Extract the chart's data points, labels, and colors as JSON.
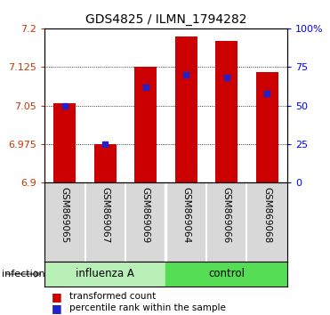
{
  "title": "GDS4825 / ILMN_1794282",
  "samples": [
    "GSM869065",
    "GSM869067",
    "GSM869069",
    "GSM869064",
    "GSM869066",
    "GSM869068"
  ],
  "transformed_counts": [
    7.055,
    6.975,
    7.125,
    7.185,
    7.175,
    7.115
  ],
  "percentile_ranks": [
    50,
    25,
    62,
    70,
    68,
    58
  ],
  "y_min": 6.9,
  "y_max": 7.2,
  "y_ticks": [
    6.9,
    6.975,
    7.05,
    7.125,
    7.2
  ],
  "y_tick_labels": [
    "6.9",
    "6.975",
    "7.05",
    "7.125",
    "7.2"
  ],
  "y2_ticks": [
    0,
    25,
    50,
    75,
    100
  ],
  "y2_tick_labels": [
    "0",
    "25",
    "50",
    "75",
    "100%"
  ],
  "bar_color": "#cc0000",
  "blue_color": "#2222cc",
  "bar_width": 0.55,
  "sample_bg": "#d8d8d8",
  "group1_color": "#b8f0b8",
  "group2_color": "#55dd55",
  "infection_label": "infection",
  "legend_red_label": "transformed count",
  "legend_blue_label": "percentile rank within the sample"
}
